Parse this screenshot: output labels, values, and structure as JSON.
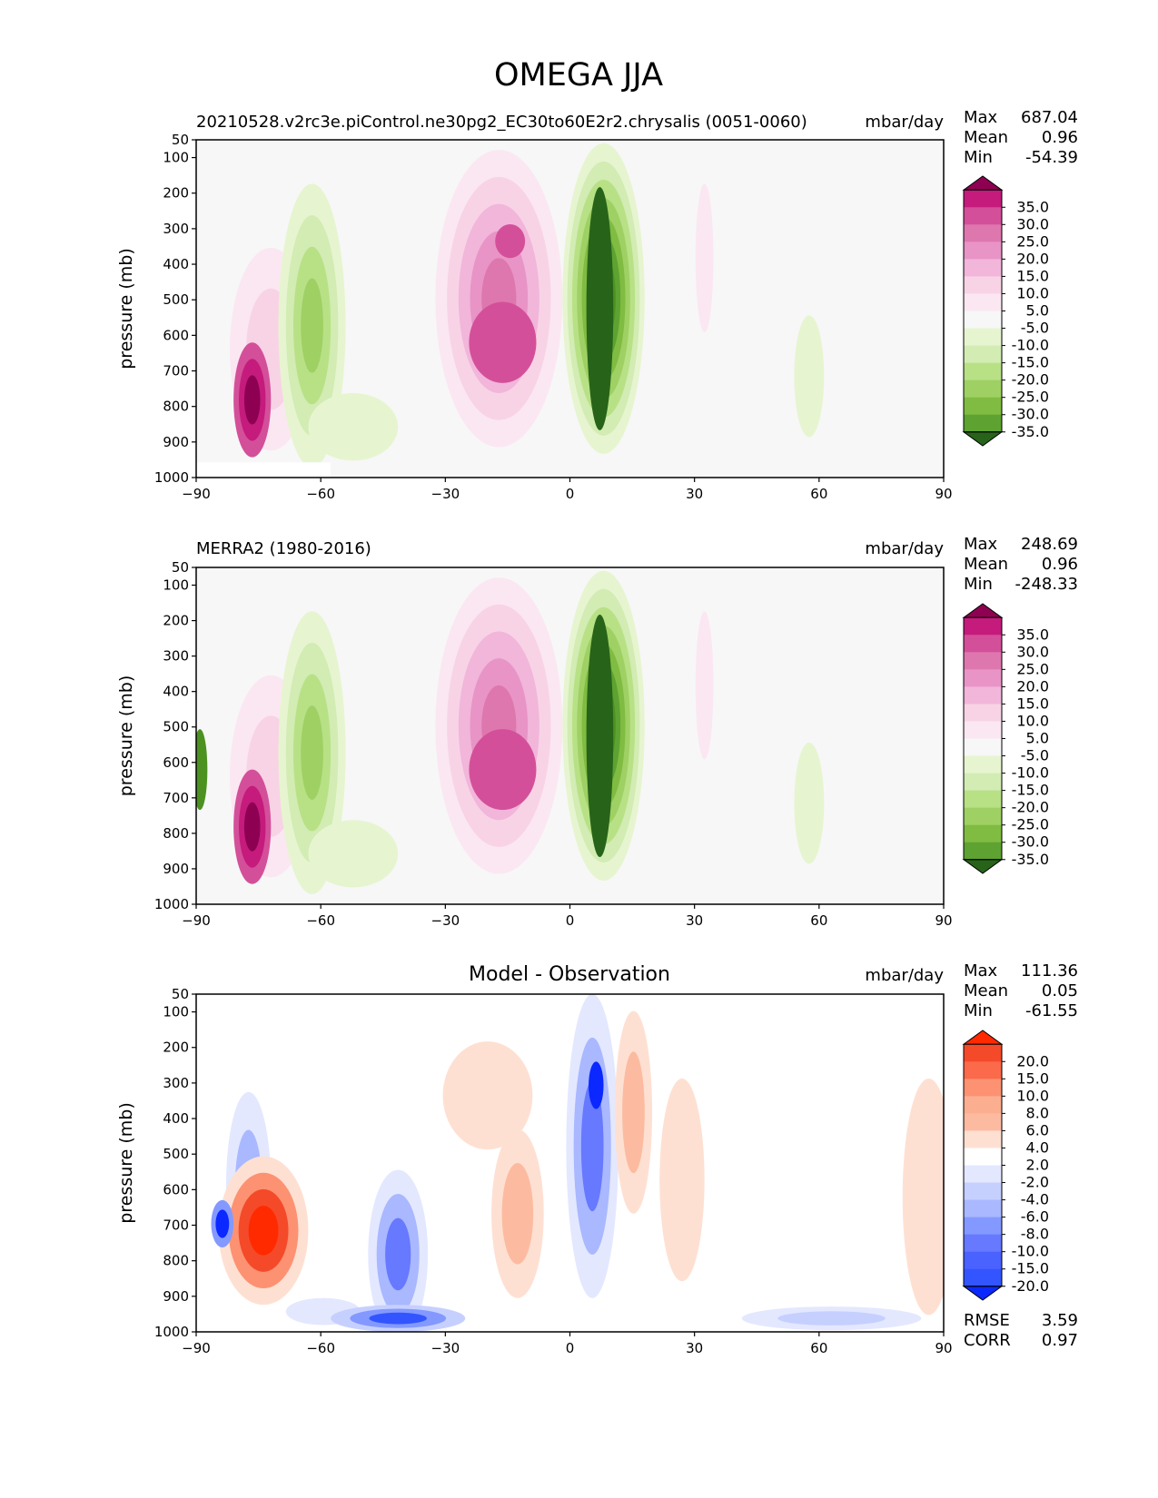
{
  "title": "OMEGA JJA",
  "units": "mbar/day",
  "ylabel": "pressure (mb)",
  "x_ticks": [
    "−90",
    "−60",
    "−30",
    "0",
    "30",
    "60",
    "90"
  ],
  "y_ticks": [
    "50",
    "100",
    "200",
    "300",
    "400",
    "500",
    "600",
    "700",
    "800",
    "900",
    "1000"
  ],
  "colors": {
    "bg": "#f7f7f7",
    "pink": [
      "#fbe7f2",
      "#f8d3e6",
      "#f1b6da",
      "#e894c6",
      "#de77ae",
      "#d44f99",
      "#c51b7d",
      "#8e0152"
    ],
    "green": [
      "#e6f5d0",
      "#d2ecb4",
      "#b8e186",
      "#9fd064",
      "#7fbc41",
      "#5ea232",
      "#4d9221",
      "#276419"
    ],
    "red": [
      "#fee0d2",
      "#fcbba1",
      "#fc9272",
      "#fb6a4a",
      "#f44a2a",
      "#ff2a00"
    ],
    "blue": [
      "#e3e8ff",
      "#c6d0ff",
      "#a9b8ff",
      "#8399ff",
      "#6679ff",
      "#3355ff",
      "#0a28ff"
    ]
  },
  "chart_data": [
    {
      "type": "contour",
      "subtitle": "20210528.v2rc3e.piControl.ne30pg2_EC30to60E2r2.chrysalis (0051-0060)",
      "units": "mbar/day",
      "stats": [
        {
          "label": "Max",
          "value": "687.04"
        },
        {
          "label": "Mean",
          "value": "0.96"
        },
        {
          "label": "Min",
          "value": "-54.39"
        }
      ],
      "xlim": [
        -90,
        90
      ],
      "ylim": [
        1000,
        50
      ],
      "colorbar": {
        "levels": [
          "35.0",
          "30.0",
          "25.0",
          "20.0",
          "15.0",
          "10.0",
          "5.0",
          "-5.0",
          "-10.0",
          "-15.0",
          "-20.0",
          "-25.0",
          "-30.0",
          "-35.0"
        ],
        "colors": [
          "#8e0152",
          "#c51b7d",
          "#d44f99",
          "#de77ae",
          "#e894c6",
          "#f1b6da",
          "#f8d3e6",
          "#fbe7f2",
          "#f7f7f7",
          "#e6f5d0",
          "#d2ecb4",
          "#b8e186",
          "#9fd064",
          "#7fbc41",
          "#5ea232",
          "#276419"
        ]
      }
    },
    {
      "type": "contour",
      "subtitle": "MERRA2 (1980-2016)",
      "units": "mbar/day",
      "stats": [
        {
          "label": "Max",
          "value": "248.69"
        },
        {
          "label": "Mean",
          "value": "0.96"
        },
        {
          "label": "Min",
          "value": "-248.33"
        }
      ],
      "xlim": [
        -90,
        90
      ],
      "ylim": [
        1000,
        50
      ],
      "colorbar": {
        "levels": [
          "35.0",
          "30.0",
          "25.0",
          "20.0",
          "15.0",
          "10.0",
          "5.0",
          "-5.0",
          "-10.0",
          "-15.0",
          "-20.0",
          "-25.0",
          "-30.0",
          "-35.0"
        ],
        "colors": [
          "#8e0152",
          "#c51b7d",
          "#d44f99",
          "#de77ae",
          "#e894c6",
          "#f1b6da",
          "#f8d3e6",
          "#fbe7f2",
          "#f7f7f7",
          "#e6f5d0",
          "#d2ecb4",
          "#b8e186",
          "#9fd064",
          "#7fbc41",
          "#5ea232",
          "#276419"
        ]
      }
    },
    {
      "type": "contour",
      "title": "Model - Observation",
      "units": "mbar/day",
      "stats": [
        {
          "label": "Max",
          "value": "111.36"
        },
        {
          "label": "Mean",
          "value": "0.05"
        },
        {
          "label": "Min",
          "value": "-61.55"
        }
      ],
      "metrics": [
        {
          "label": "RMSE",
          "value": "3.59"
        },
        {
          "label": "CORR",
          "value": "0.97"
        }
      ],
      "xlim": [
        -90,
        90
      ],
      "ylim": [
        1000,
        50
      ],
      "colorbar": {
        "levels": [
          "20.0",
          "15.0",
          "10.0",
          "8.0",
          "6.0",
          "4.0",
          "2.0",
          "-2.0",
          "-4.0",
          "-6.0",
          "-8.0",
          "-10.0",
          "-15.0",
          "-20.0"
        ],
        "colors": [
          "#ff2a00",
          "#f44a2a",
          "#fb6a4a",
          "#fc9272",
          "#fcae91",
          "#fcbba1",
          "#fee0d2",
          "#ffffff",
          "#e3e8ff",
          "#c6d0ff",
          "#a9b8ff",
          "#8399ff",
          "#6679ff",
          "#4a62ff",
          "#3355ff",
          "#0a28ff"
        ]
      }
    }
  ]
}
